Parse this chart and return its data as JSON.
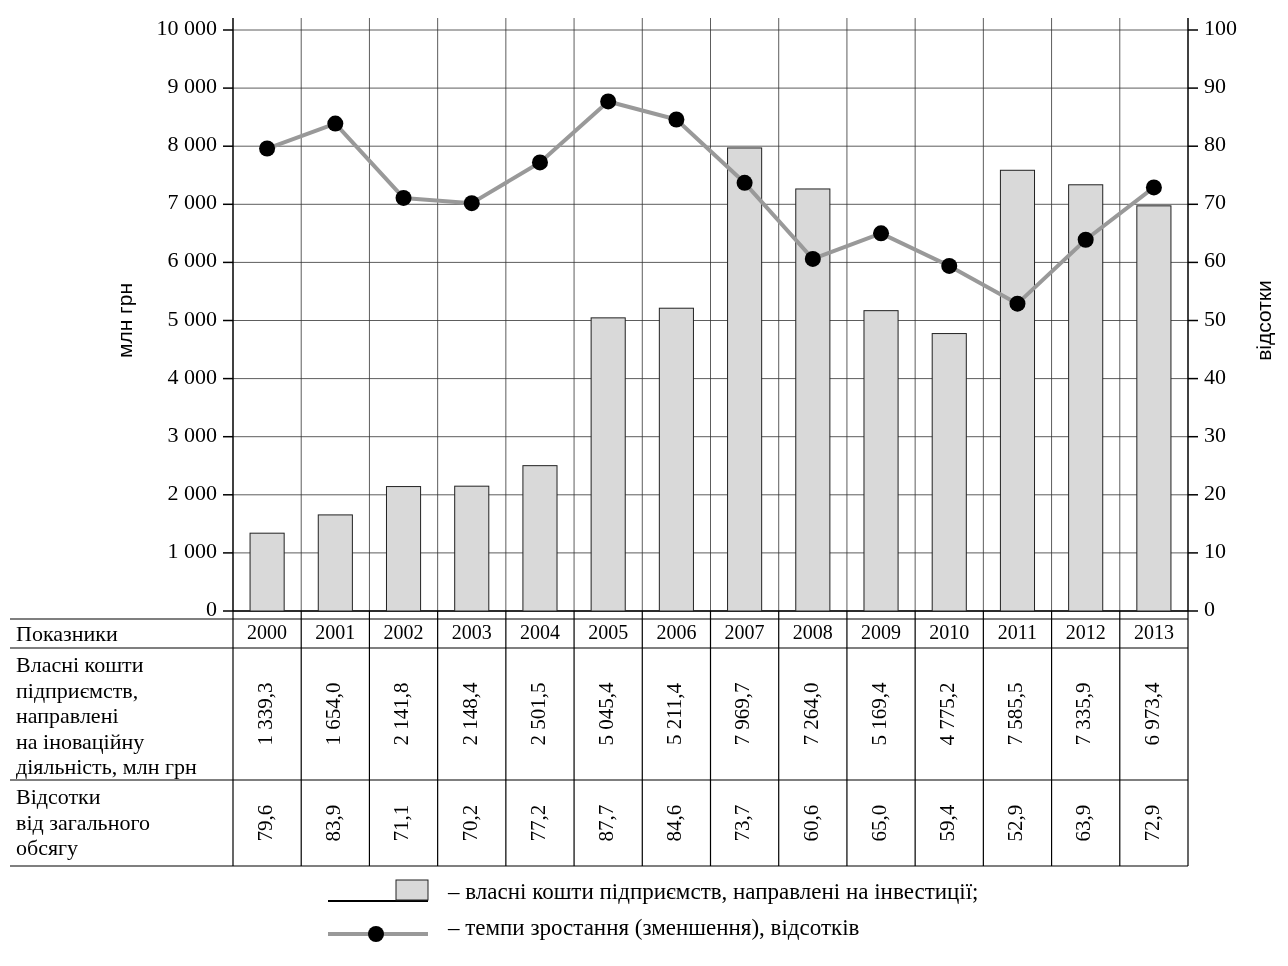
{
  "chart_data": {
    "type": "bar",
    "categories": [
      "2000",
      "2001",
      "2002",
      "2003",
      "2004",
      "2005",
      "2006",
      "2007",
      "2008",
      "2009",
      "2010",
      "2011",
      "2012",
      "2013"
    ],
    "ylabel": "млн грн",
    "y2label": "відсотки",
    "ylim": [
      0,
      10000
    ],
    "yticks": [
      {
        "value": 0,
        "label": "0"
      },
      {
        "value": 1000,
        "label": "1 000"
      },
      {
        "value": 2000,
        "label": "2 000"
      },
      {
        "value": 3000,
        "label": "3 000"
      },
      {
        "value": 4000,
        "label": "4 000"
      },
      {
        "value": 5000,
        "label": "5 000"
      },
      {
        "value": 6000,
        "label": "6 000"
      },
      {
        "value": 7000,
        "label": "7 000"
      },
      {
        "value": 8000,
        "label": "8 000"
      },
      {
        "value": 9000,
        "label": "9 000"
      },
      {
        "value": 10000,
        "label": "10 000"
      }
    ],
    "y2lim": [
      0,
      100
    ],
    "y2ticks": [
      0,
      10,
      20,
      30,
      40,
      50,
      60,
      70,
      80,
      90,
      100
    ],
    "grid": true,
    "legend": "bottom",
    "marker": "circle",
    "annotations": [
      "Показники",
      "Власні кошти\nпідприємств,\nнаправлені\nна іноваційну\nдіяльність, млн грн",
      "Відсотки\nвід загального\nобсягу"
    ],
    "series": [
      {
        "name": "– власні кошти підприємств, направлені на інвестиції;",
        "color": "#d9d9d9",
        "values": [
          1339.3,
          1654.0,
          2141.8,
          2148.4,
          2501.5,
          5045.4,
          5211.4,
          7969.7,
          7264.0,
          5169.4,
          4775.2,
          7585.5,
          7335.9,
          6973.4
        ],
        "value_labels": [
          "1 339,3",
          "1 654,0",
          "2 141,8",
          "2 148,4",
          "2 501,5",
          "5 045,4",
          "5 211,4",
          "7 969,7",
          "7 264,0",
          "5 169,4",
          "4 775,2",
          "7 585,5",
          "7 335,9",
          "6 973,4"
        ]
      },
      {
        "name": "– темпи зростання (зменшення), відсотків",
        "type": "line",
        "axis": "y2",
        "color": "#999999",
        "values": [
          79.6,
          83.9,
          71.1,
          70.2,
          77.2,
          87.7,
          84.6,
          73.7,
          60.6,
          65.0,
          59.4,
          52.9,
          63.9,
          72.9
        ],
        "value_labels": [
          "79,6",
          "83,9",
          "71,1",
          "70,2",
          "77,2",
          "87,7",
          "84,6",
          "73,7",
          "60,6",
          "65,0",
          "59,4",
          "52,9",
          "63,9",
          "72,9"
        ]
      }
    ]
  }
}
